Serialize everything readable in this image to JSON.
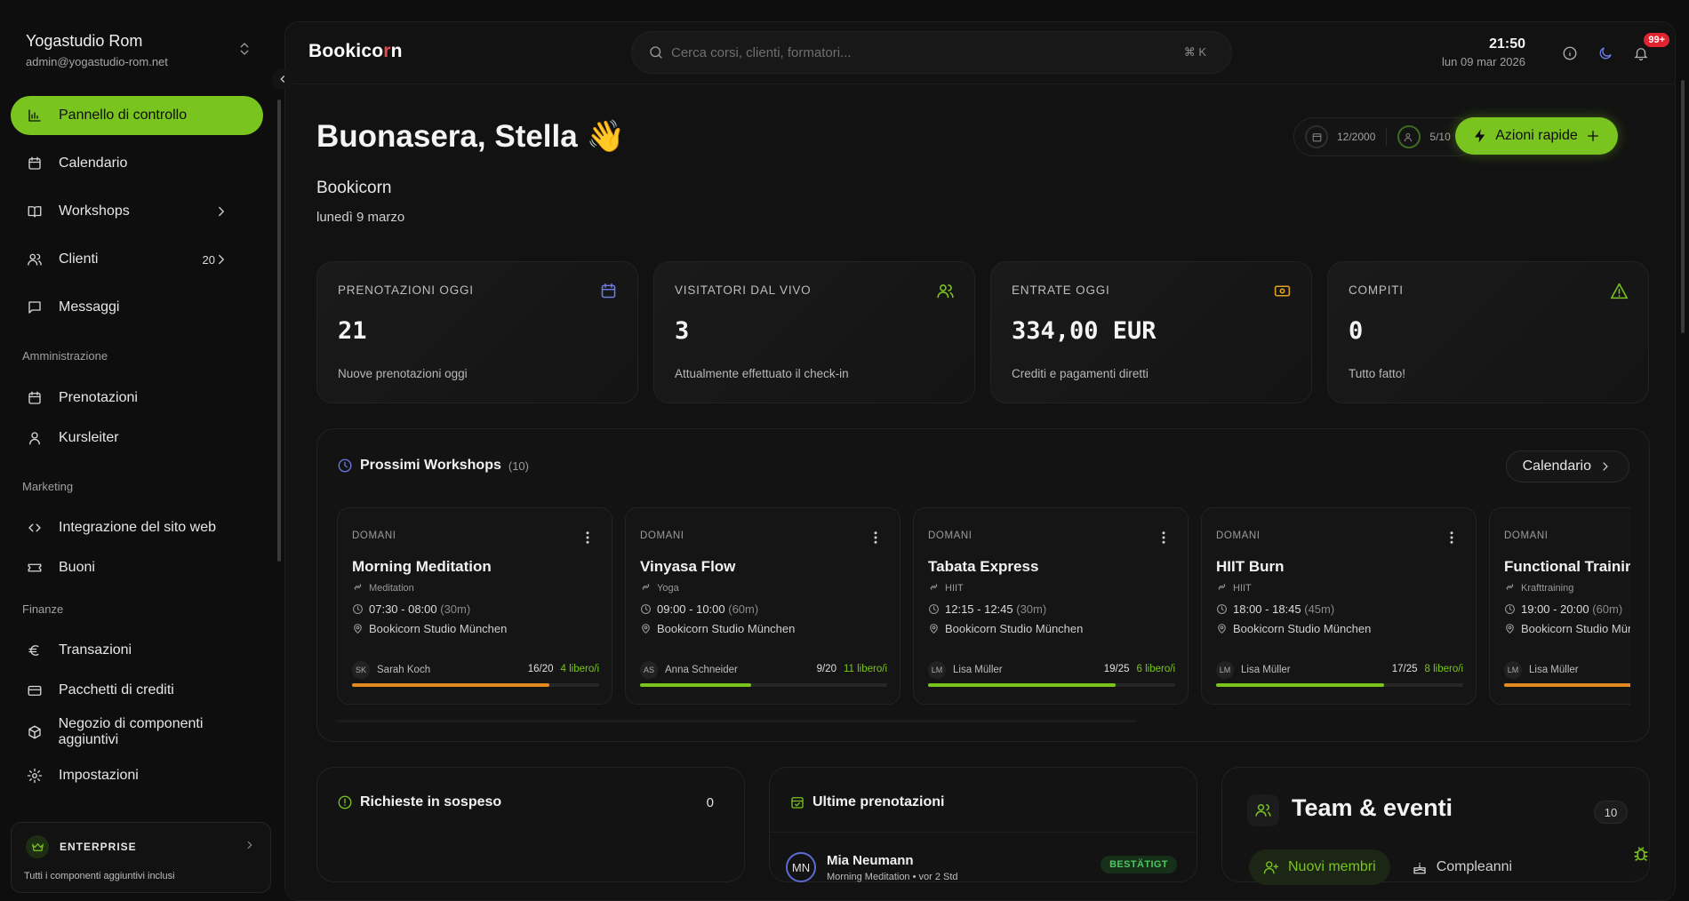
{
  "account": {
    "name": "Yogastudio Rom",
    "email": "admin@yogastudio-rom.net"
  },
  "nav": {
    "dashboard": "Pannello di controllo",
    "calendar": "Calendario",
    "workshops": "Workshops",
    "clients": "Clienti",
    "clients_count": "20",
    "messages": "Messaggi",
    "section_admin": "Amministrazione",
    "bookings": "Prenotazioni",
    "instructors": "Kursleiter",
    "section_marketing": "Marketing",
    "website": "Integrazione del sito web",
    "vouchers": "Buoni",
    "section_finance": "Finanze",
    "transactions": "Transazioni",
    "credit_packs": "Pacchetti di crediti",
    "addon_shop": "Negozio di componenti aggiuntivi",
    "settings": "Impostazioni"
  },
  "enterprise": {
    "title": "ENTERPRISE",
    "subtitle": "Tutti i componenti aggiuntivi inclusi"
  },
  "topbar": {
    "logo_a": "Bookico",
    "logo_b": "r",
    "logo_c": "n",
    "search_placeholder": "Cerca corsi, clienti, formatori...",
    "search_shortcut": "⌘ K",
    "time": "21:50",
    "date": "lun 09 mar 2026",
    "notifications": "99+"
  },
  "greeting": {
    "title": "Buonasera, Stella 👋",
    "studio": "Bookicorn",
    "date": "lunedì 9 marzo"
  },
  "usage": {
    "bookings": "12/2000",
    "staff": "5/10"
  },
  "quick_action": "Azioni rapide",
  "stats": [
    {
      "title": "PRENOTAZIONI OGGI",
      "value": "21",
      "sub": "Nuove prenotazioni oggi",
      "icon": "calendar-icon",
      "color": "#6a7be0"
    },
    {
      "title": "VISITATORI DAL VIVO",
      "value": "3",
      "sub": "Attualmente effettuato il check-in",
      "icon": "users-icon",
      "color": "#7ac41f"
    },
    {
      "title": "ENTRATE OGGI",
      "value": "334,00 EUR",
      "sub": "Crediti e pagamenti diretti",
      "icon": "money-icon",
      "color": "#e0a020"
    },
    {
      "title": "COMPITI",
      "value": "0",
      "sub": "Tutto fatto!",
      "icon": "warning-icon",
      "color": "#7ac41f"
    }
  ],
  "workshops": {
    "title": "Prossimi Workshops",
    "count": "(10)",
    "calendar_btn": "Calendario",
    "items": [
      {
        "when": "DOMANI",
        "title": "Morning Meditation",
        "category": "Meditation",
        "time": "07:30 - 08:00",
        "duration": "(30m)",
        "location": "Bookicorn Studio München",
        "initials": "SK",
        "instructor": "Sarah Koch",
        "capacity": "16/20",
        "free": "4 libero/i",
        "fill": 0.8,
        "bar_color": "#e08a20"
      },
      {
        "when": "DOMANI",
        "title": "Vinyasa Flow",
        "category": "Yoga",
        "time": "09:00 - 10:00",
        "duration": "(60m)",
        "location": "Bookicorn Studio München",
        "initials": "AS",
        "instructor": "Anna Schneider",
        "capacity": "9/20",
        "free": "11 libero/i",
        "fill": 0.45,
        "bar_color": "#7ac41f"
      },
      {
        "when": "DOMANI",
        "title": "Tabata Express",
        "category": "HIIT",
        "time": "12:15 - 12:45",
        "duration": "(30m)",
        "location": "Bookicorn Studio München",
        "initials": "LM",
        "instructor": "Lisa Müller",
        "capacity": "19/25",
        "free": "6 libero/i",
        "fill": 0.76,
        "bar_color": "#7ac41f"
      },
      {
        "when": "DOMANI",
        "title": "HIIT Burn",
        "category": "HIIT",
        "time": "18:00 - 18:45",
        "duration": "(45m)",
        "location": "Bookicorn Studio München",
        "initials": "LM",
        "instructor": "Lisa Müller",
        "capacity": "17/25",
        "free": "8 libero/i",
        "fill": 0.68,
        "bar_color": "#7ac41f"
      },
      {
        "when": "DOMANI",
        "title": "Functional Training",
        "category": "Krafttraining",
        "time": "19:00 - 20:00",
        "duration": "(60m)",
        "location": "Bookicorn Studio München",
        "initials": "LM",
        "instructor": "Lisa Müller",
        "capacity": "",
        "free": "",
        "fill": 1.0,
        "bar_color": "#e08a20"
      }
    ]
  },
  "pending": {
    "title": "Richieste in sospeso",
    "count": "0"
  },
  "latest": {
    "title": "Ultime prenotazioni",
    "rows": [
      {
        "initials": "MN",
        "name": "Mia Neumann",
        "sub": "Morning Meditation • vor 2 Std",
        "status": "BESTÄTIGT"
      }
    ]
  },
  "team": {
    "title": "Team & eventi",
    "count": "10",
    "tab_new": "Nuovi membri",
    "tab_birthdays": "Compleanni"
  }
}
